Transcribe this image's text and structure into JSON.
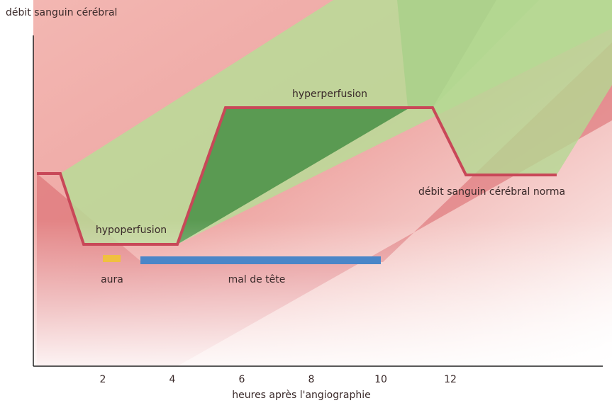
{
  "title": "débit sanguin cérébral",
  "labels": {
    "hyperperfusion": "hyperperfusion",
    "hypoperfusion": "hypoperfusion",
    "normal": "débit sanguin cérébral norma",
    "aura": "aura",
    "headache": "mal de tête"
  },
  "x_axis": {
    "label": "heures après l'angiographie",
    "ticks": [
      2,
      4,
      6,
      8,
      10,
      12
    ]
  }
}
